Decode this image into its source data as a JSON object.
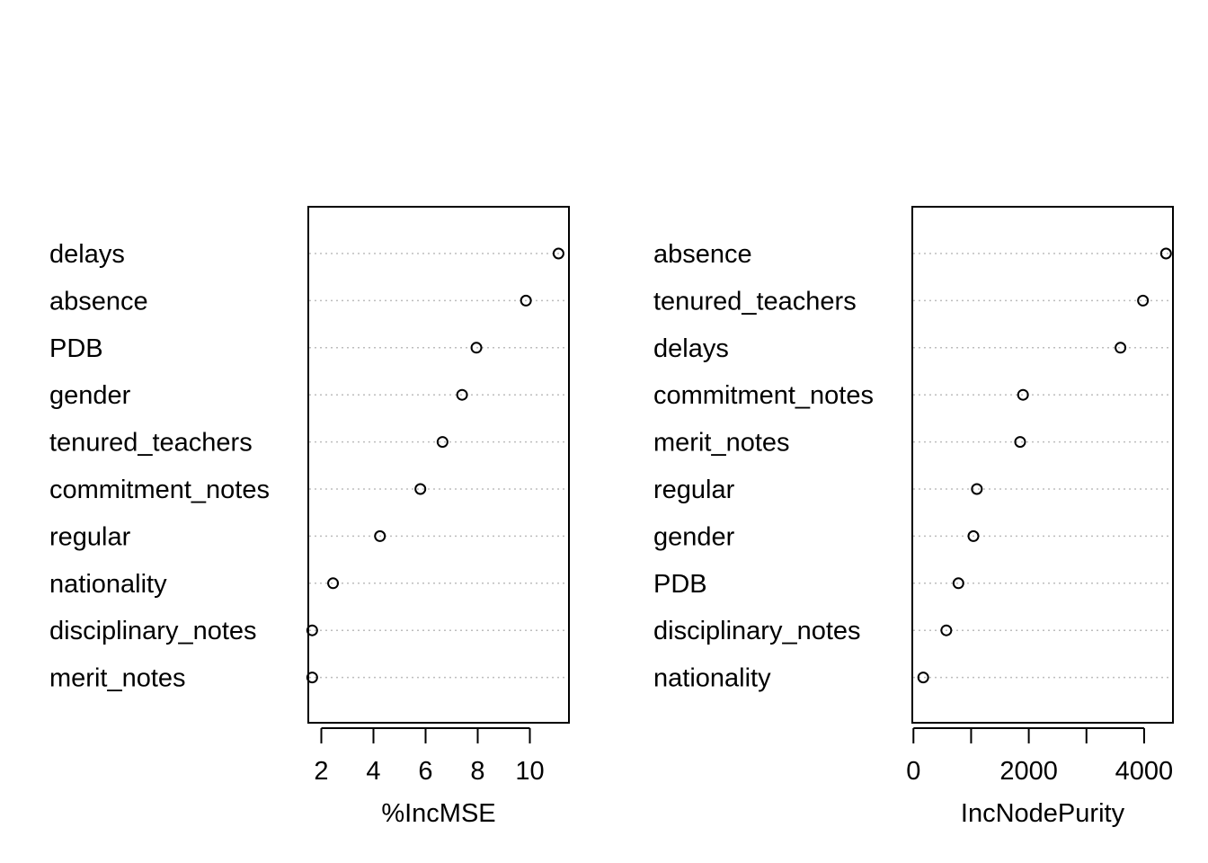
{
  "chart_data": [
    {
      "type": "dotchart",
      "xlabel": "%IncMSE",
      "xlim": [
        1.5,
        11.5
      ],
      "xticks": [
        2,
        4,
        6,
        8,
        10
      ],
      "xtick_labels": [
        "2",
        "4",
        "6",
        "8",
        "10"
      ],
      "categories": [
        "delays",
        "absence",
        "PDB",
        "gender",
        "tenured_teachers",
        "commitment_notes",
        "regular",
        "nationality",
        "disciplinary_notes",
        "merit_notes"
      ],
      "values": [
        11.1,
        9.85,
        7.95,
        7.4,
        6.65,
        5.8,
        4.25,
        2.45,
        1.65,
        1.65
      ],
      "grid": "dotted horizontal"
    },
    {
      "type": "dotchart",
      "xlabel": "IncNodePurity",
      "xlim": [
        -20,
        4500
      ],
      "xticks": [
        0,
        1000,
        2000,
        3000,
        4000
      ],
      "xtick_labels": [
        "0",
        "",
        "2000",
        "",
        "4000"
      ],
      "categories": [
        "absence",
        "tenured_teachers",
        "delays",
        "commitment_notes",
        "merit_notes",
        "regular",
        "gender",
        "PDB",
        "disciplinary_notes",
        "nationality"
      ],
      "values": [
        4380,
        3980,
        3590,
        1900,
        1850,
        1100,
        1040,
        780,
        570,
        170
      ],
      "grid": "dotted horizontal"
    }
  ]
}
